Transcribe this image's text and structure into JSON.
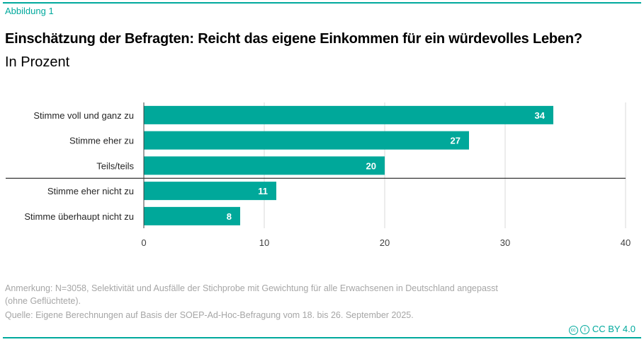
{
  "figure_label": "Abbildung 1",
  "title": "Einschätzung der Befragten: Reicht das eigene Einkommen für ein würdevolles Leben?",
  "subtitle": "In Prozent",
  "chart_data": {
    "type": "bar",
    "orientation": "horizontal",
    "categories": [
      "Stimme voll und ganz zu",
      "Stimme eher zu",
      "Teils/teils",
      "Stimme eher nicht zu",
      "Stimme überhaupt nicht zu"
    ],
    "values": [
      34,
      27,
      20,
      11,
      8
    ],
    "xlim": [
      0,
      40
    ],
    "xticks": [
      0,
      10,
      20,
      30,
      40
    ],
    "grid": true,
    "color": "#00a89a",
    "separator_after_category": "Teils/teils",
    "data_labels": true
  },
  "notes": {
    "anmerkung": "Anmerkung: N=3058, Selektivität und Ausfälle der Stichprobe mit Gewichtung für alle Erwachsenen in Deutschland angepasst (ohne Geflüchtete).",
    "quelle": "Quelle: Eigene Berechnungen auf Basis der SOEP-Ad-Hoc-Befragung vom 18. bis 26. September 2025."
  },
  "license": "CC BY 4.0",
  "accent_color": "#00a99d"
}
